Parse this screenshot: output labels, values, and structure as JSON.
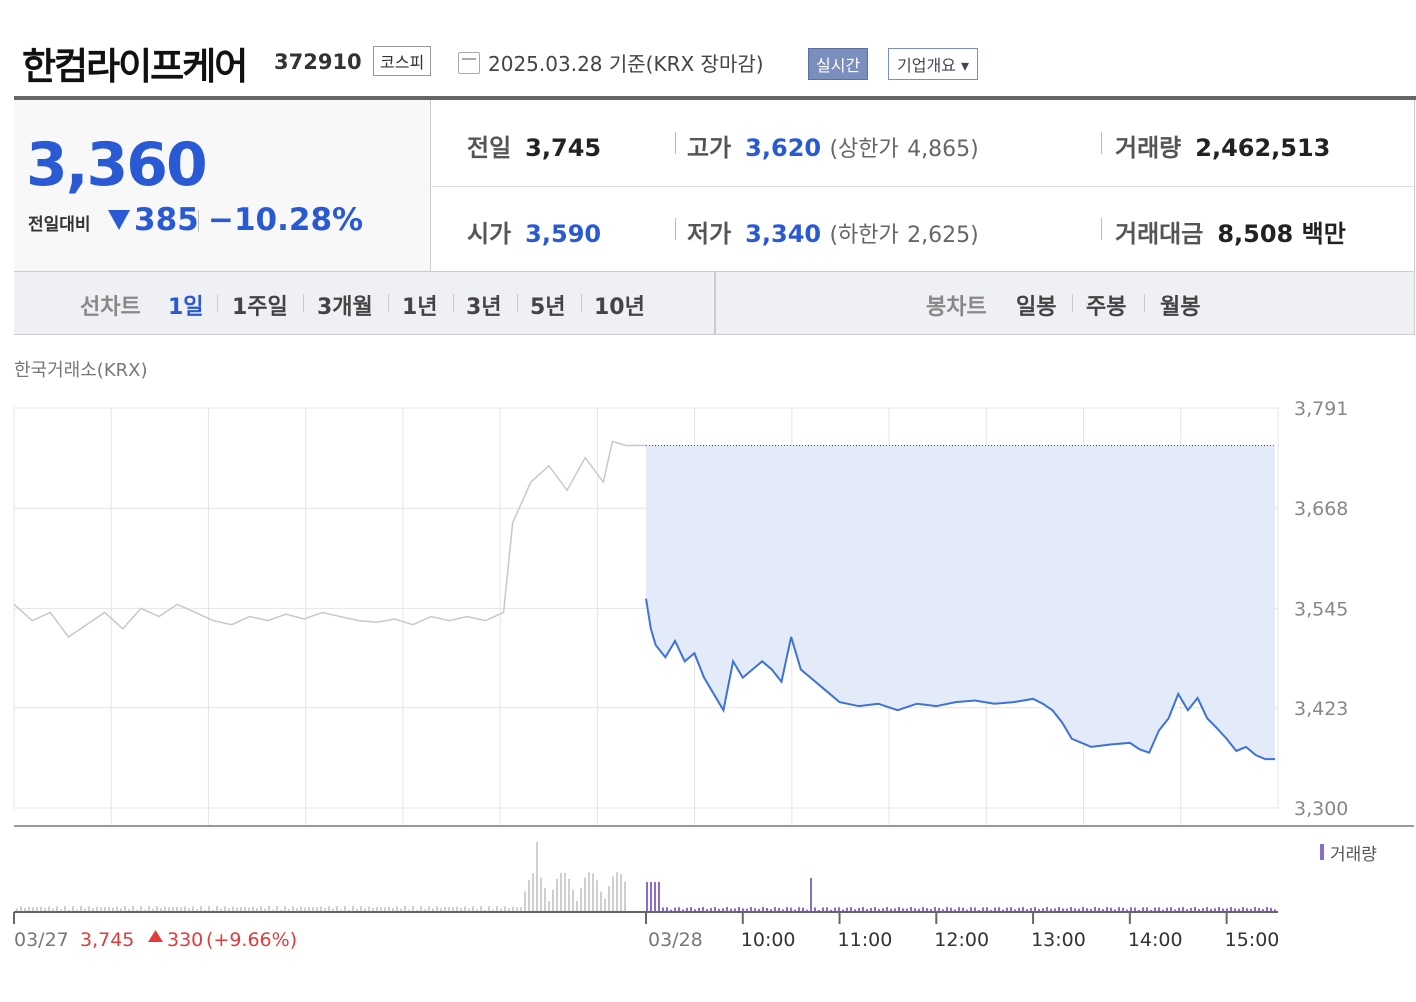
{
  "header": {
    "name": "한컴라이프케어",
    "code": "372910",
    "market": "코스피",
    "date": "2025.03.28  기준(KRX 장마감)",
    "realtime_label": "실시간",
    "company_label": "기업개요 ▾"
  },
  "price": {
    "now": "3,360",
    "compare_label": "전일대비",
    "change": "385",
    "change_pct": "−10.28%",
    "color_down": "#2a5ad3"
  },
  "stats": {
    "prev": {
      "label": "전일",
      "value": "3,745"
    },
    "high": {
      "label": "고가",
      "value": "3,620",
      "limit_label": "(상한가",
      "limit_value": "4,865)"
    },
    "volume": {
      "label": "거래량",
      "value": "2,462,513"
    },
    "open": {
      "label": "시가",
      "value": "3,590"
    },
    "low": {
      "label": "저가",
      "value": "3,340",
      "limit_label": "(하한가",
      "limit_value": "2,625)"
    },
    "amount": {
      "label": "거래대금",
      "value": "8,508",
      "unit": "백만"
    }
  },
  "tabs": {
    "line_label": "선차트",
    "line_items": [
      "1일",
      "1주일",
      "3개월",
      "1년",
      "3년",
      "5년",
      "10년"
    ],
    "active": "1일",
    "candle_label": "봉차트",
    "candle_items": [
      "일봉",
      "주봉",
      "월봉"
    ]
  },
  "exchange_label": "한국거래소(KRX)",
  "chart_data": {
    "type": "line",
    "y_ticks": [
      "3,791",
      "3,668",
      "3,545",
      "3,423",
      "3,300"
    ],
    "ylim": [
      3300,
      3791
    ],
    "previous_close": 3745,
    "volume_legend": "거래량",
    "prev_day": {
      "date_label": "03/27",
      "close": "3,745",
      "change": "330",
      "change_pct": "(+9.66%)",
      "x": [
        9.0,
        9.2,
        9.4,
        9.6,
        9.8,
        10.0,
        10.2,
        10.4,
        10.6,
        10.8,
        11.0,
        11.2,
        11.4,
        11.6,
        11.8,
        12.0,
        12.2,
        12.4,
        12.6,
        12.8,
        13.0,
        13.2,
        13.4,
        13.6,
        13.8,
        14.0,
        14.2,
        14.4,
        14.5,
        14.7,
        14.9,
        15.1,
        15.3,
        15.5,
        15.6,
        15.75
      ],
      "y": [
        3550,
        3530,
        3540,
        3510,
        3525,
        3540,
        3520,
        3545,
        3535,
        3550,
        3540,
        3530,
        3525,
        3535,
        3530,
        3538,
        3532,
        3540,
        3535,
        3530,
        3528,
        3532,
        3525,
        3535,
        3530,
        3535,
        3530,
        3540,
        3650,
        3700,
        3720,
        3690,
        3730,
        3700,
        3750,
        3745
      ]
    },
    "today": {
      "date_label": "03/28",
      "x_ticks": [
        "10:00",
        "11:00",
        "12:00",
        "13:00",
        "14:00",
        "15:00"
      ],
      "x": [
        9.0,
        9.05,
        9.1,
        9.2,
        9.3,
        9.4,
        9.5,
        9.6,
        9.7,
        9.8,
        9.9,
        10.0,
        10.1,
        10.2,
        10.3,
        10.4,
        10.5,
        10.55,
        10.6,
        10.7,
        10.8,
        10.9,
        11.0,
        11.2,
        11.4,
        11.6,
        11.8,
        12.0,
        12.2,
        12.4,
        12.6,
        12.8,
        13.0,
        13.1,
        13.2,
        13.3,
        13.4,
        13.5,
        13.6,
        13.8,
        14.0,
        14.1,
        14.2,
        14.3,
        14.4,
        14.5,
        14.6,
        14.7,
        14.8,
        14.9,
        15.0,
        15.1,
        15.2,
        15.3,
        15.4,
        15.5
      ],
      "y": [
        3557,
        3520,
        3500,
        3485,
        3505,
        3480,
        3490,
        3460,
        3440,
        3420,
        3480,
        3460,
        3470,
        3480,
        3470,
        3455,
        3510,
        3490,
        3470,
        3460,
        3450,
        3440,
        3430,
        3425,
        3428,
        3420,
        3428,
        3425,
        3430,
        3432,
        3428,
        3430,
        3434,
        3428,
        3420,
        3405,
        3385,
        3380,
        3375,
        3378,
        3380,
        3372,
        3368,
        3395,
        3410,
        3440,
        3420,
        3435,
        3410,
        3398,
        3385,
        3370,
        3375,
        3365,
        3360,
        3360
      ]
    }
  }
}
